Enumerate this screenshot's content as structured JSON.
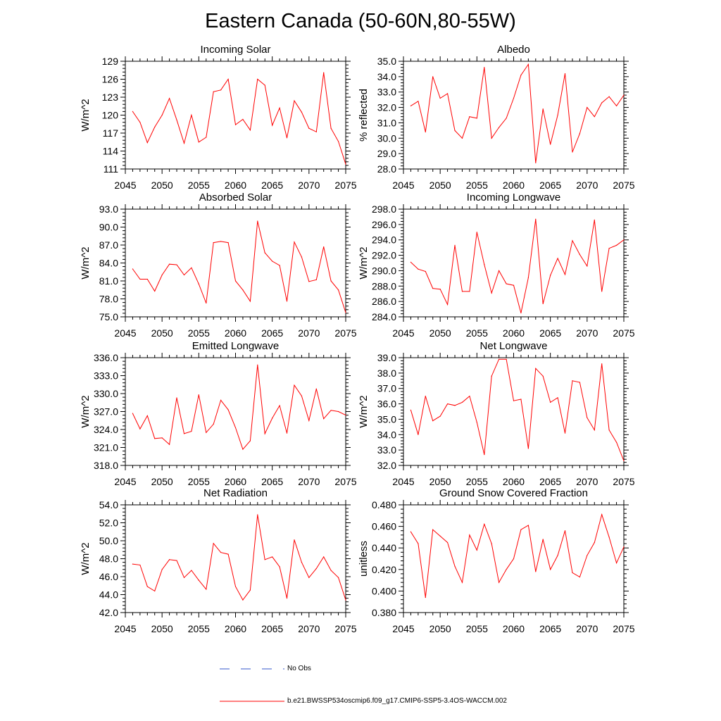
{
  "figure_title": "Eastern Canada (50-60N,80-55W)",
  "colors": {
    "model_line": "#ff0000",
    "obs_line": "#3355cc",
    "axis": "#000000"
  },
  "legend": {
    "obs_label": "No Obs",
    "model_label": "b.e21.BWSSP534oscmip6.f09_g17.CMIP6-SSP5-3.4OS-WACCM.002"
  },
  "chart_data": [
    {
      "type": "line",
      "title": "Incoming Solar",
      "ylabel": "W/m^2",
      "xlim": [
        2045,
        2075
      ],
      "ylim": [
        111,
        129
      ],
      "yticks": [
        111,
        114,
        117,
        120,
        123,
        126,
        129
      ],
      "ytick_labels": [
        "111",
        "114",
        "117",
        "120",
        "123",
        "126",
        "129"
      ],
      "xticks": [
        2045,
        2050,
        2055,
        2060,
        2065,
        2070,
        2075
      ],
      "xtick_labels": [
        "2045",
        "2050",
        "2055",
        "2060",
        "2065",
        "2070",
        "2075"
      ],
      "x": [
        2046,
        2047,
        2048,
        2049,
        2050,
        2051,
        2052,
        2053,
        2054,
        2055,
        2056,
        2057,
        2058,
        2059,
        2060,
        2061,
        2062,
        2063,
        2064,
        2065,
        2066,
        2067,
        2068,
        2069,
        2070,
        2071,
        2072,
        2073,
        2074,
        2075
      ],
      "values": [
        120.6,
        118.8,
        115.4,
        118.0,
        120.0,
        122.8,
        119.2,
        115.3,
        120.0,
        115.5,
        116.3,
        123.9,
        124.2,
        126.0,
        118.4,
        119.3,
        117.5,
        126.0,
        125.0,
        118.3,
        121.2,
        116.2,
        122.4,
        120.5,
        117.8,
        117.2,
        127.1,
        117.8,
        115.6,
        111.8
      ]
    },
    {
      "type": "line",
      "title": "Albedo",
      "ylabel": "% reflected",
      "xlim": [
        2045,
        2075
      ],
      "ylim": [
        28.0,
        35.0
      ],
      "yticks": [
        28,
        29,
        30,
        31,
        32,
        33,
        34,
        35
      ],
      "ytick_labels": [
        "28.0",
        "29.0",
        "30.0",
        "31.0",
        "32.0",
        "33.0",
        "34.0",
        "35.0"
      ],
      "xticks": [
        2045,
        2050,
        2055,
        2060,
        2065,
        2070,
        2075
      ],
      "xtick_labels": [
        "2045",
        "2050",
        "2055",
        "2060",
        "2065",
        "2070",
        "2075"
      ],
      "x": [
        2046,
        2047,
        2048,
        2049,
        2050,
        2051,
        2052,
        2053,
        2054,
        2055,
        2056,
        2057,
        2058,
        2059,
        2060,
        2061,
        2062,
        2063,
        2064,
        2065,
        2066,
        2067,
        2068,
        2069,
        2070,
        2071,
        2072,
        2073,
        2074,
        2075
      ],
      "values": [
        32.1,
        32.4,
        30.4,
        34.0,
        32.6,
        32.9,
        30.5,
        30.0,
        31.4,
        31.3,
        34.6,
        30.0,
        30.7,
        31.3,
        32.6,
        34.1,
        34.8,
        28.4,
        31.9,
        29.6,
        31.5,
        34.2,
        29.1,
        30.3,
        32.0,
        31.4,
        32.3,
        32.7,
        32.1,
        32.8
      ]
    },
    {
      "type": "line",
      "title": "Absorbed Solar",
      "ylabel": "W/m^2",
      "xlim": [
        2045,
        2075
      ],
      "ylim": [
        75.0,
        93.0
      ],
      "yticks": [
        75,
        78,
        81,
        84,
        87,
        90,
        93
      ],
      "ytick_labels": [
        "75.0",
        "78.0",
        "81.0",
        "84.0",
        "87.0",
        "90.0",
        "93.0"
      ],
      "xticks": [
        2045,
        2050,
        2055,
        2060,
        2065,
        2070,
        2075
      ],
      "xtick_labels": [
        "2045",
        "2050",
        "2055",
        "2060",
        "2065",
        "2070",
        "2075"
      ],
      "x": [
        2046,
        2047,
        2048,
        2049,
        2050,
        2051,
        2052,
        2053,
        2054,
        2055,
        2056,
        2057,
        2058,
        2059,
        2060,
        2061,
        2062,
        2063,
        2064,
        2065,
        2066,
        2067,
        2068,
        2069,
        2070,
        2071,
        2072,
        2073,
        2074,
        2075
      ],
      "values": [
        83.0,
        81.3,
        81.3,
        79.3,
        82.0,
        83.8,
        83.7,
        82.0,
        83.2,
        80.5,
        77.3,
        87.4,
        87.6,
        87.4,
        81.0,
        79.5,
        77.6,
        91.0,
        85.7,
        84.3,
        83.6,
        77.6,
        87.5,
        85.0,
        80.9,
        81.2,
        86.7,
        81.0,
        79.5,
        75.7
      ]
    },
    {
      "type": "line",
      "title": "Incoming Longwave",
      "ylabel": "W/m^2",
      "xlim": [
        2045,
        2075
      ],
      "ylim": [
        284.0,
        298.0
      ],
      "yticks": [
        284,
        286,
        288,
        290,
        292,
        294,
        296,
        298
      ],
      "ytick_labels": [
        "284.0",
        "286.0",
        "288.0",
        "290.0",
        "292.0",
        "294.0",
        "296.0",
        "298.0"
      ],
      "xticks": [
        2045,
        2050,
        2055,
        2060,
        2065,
        2070,
        2075
      ],
      "xtick_labels": [
        "2045",
        "2050",
        "2055",
        "2060",
        "2065",
        "2070",
        "2075"
      ],
      "x": [
        2046,
        2047,
        2048,
        2049,
        2050,
        2051,
        2052,
        2053,
        2054,
        2055,
        2056,
        2057,
        2058,
        2059,
        2060,
        2061,
        2062,
        2063,
        2064,
        2065,
        2066,
        2067,
        2068,
        2069,
        2070,
        2071,
        2072,
        2073,
        2074,
        2075
      ],
      "values": [
        291.1,
        290.2,
        289.9,
        287.7,
        287.6,
        285.6,
        293.3,
        287.3,
        287.3,
        295.0,
        290.8,
        287.1,
        290.0,
        288.3,
        288.1,
        284.5,
        289.1,
        296.7,
        285.7,
        289.4,
        291.6,
        289.5,
        293.9,
        292.1,
        290.6,
        296.6,
        287.3,
        292.9,
        293.3,
        294.0
      ]
    },
    {
      "type": "line",
      "title": "Emitted Longwave",
      "ylabel": "W/m^2",
      "xlim": [
        2045,
        2075
      ],
      "ylim": [
        318.0,
        336.0
      ],
      "yticks": [
        318,
        321,
        324,
        327,
        330,
        333,
        336
      ],
      "ytick_labels": [
        "318.0",
        "321.0",
        "324.0",
        "327.0",
        "330.0",
        "333.0",
        "336.0"
      ],
      "xticks": [
        2045,
        2050,
        2055,
        2060,
        2065,
        2070,
        2075
      ],
      "xtick_labels": [
        "2045",
        "2050",
        "2055",
        "2060",
        "2065",
        "2070",
        "2075"
      ],
      "x": [
        2046,
        2047,
        2048,
        2049,
        2050,
        2051,
        2052,
        2053,
        2054,
        2055,
        2056,
        2057,
        2058,
        2059,
        2060,
        2061,
        2062,
        2063,
        2064,
        2065,
        2066,
        2067,
        2068,
        2069,
        2070,
        2071,
        2072,
        2073,
        2074,
        2075
      ],
      "values": [
        326.7,
        324.1,
        326.3,
        322.5,
        322.6,
        321.5,
        329.3,
        323.3,
        323.7,
        329.8,
        323.5,
        324.9,
        328.9,
        327.3,
        324.3,
        320.7,
        322.1,
        334.8,
        323.3,
        325.9,
        328.0,
        323.4,
        331.4,
        329.6,
        325.5,
        330.8,
        325.8,
        327.2,
        327.0,
        326.4
      ]
    },
    {
      "type": "line",
      "title": "Net Longwave",
      "ylabel": "W/m^2",
      "xlim": [
        2045,
        2075
      ],
      "ylim": [
        32.0,
        39.0
      ],
      "yticks": [
        32,
        33,
        34,
        35,
        36,
        37,
        38,
        39
      ],
      "ytick_labels": [
        "32.0",
        "33.0",
        "34.0",
        "35.0",
        "36.0",
        "37.0",
        "38.0",
        "39.0"
      ],
      "xticks": [
        2045,
        2050,
        2055,
        2060,
        2065,
        2070,
        2075
      ],
      "xtick_labels": [
        "2045",
        "2050",
        "2055",
        "2060",
        "2065",
        "2070",
        "2075"
      ],
      "x": [
        2046,
        2047,
        2048,
        2049,
        2050,
        2051,
        2052,
        2053,
        2054,
        2055,
        2056,
        2057,
        2058,
        2059,
        2060,
        2061,
        2062,
        2063,
        2064,
        2065,
        2066,
        2067,
        2068,
        2069,
        2070,
        2071,
        2072,
        2073,
        2074,
        2075
      ],
      "values": [
        35.6,
        34.0,
        36.5,
        34.9,
        35.2,
        36.0,
        35.9,
        36.1,
        36.5,
        34.8,
        32.7,
        37.8,
        38.9,
        38.9,
        36.2,
        36.3,
        33.1,
        38.3,
        37.8,
        36.1,
        36.4,
        34.1,
        37.5,
        37.4,
        35.1,
        34.3,
        38.6,
        34.3,
        33.5,
        32.3
      ]
    },
    {
      "type": "line",
      "title": "Net Radiation",
      "ylabel": "W/m^2",
      "xlim": [
        2045,
        2075
      ],
      "ylim": [
        42.0,
        54.0
      ],
      "yticks": [
        42,
        44,
        46,
        48,
        50,
        52,
        54
      ],
      "ytick_labels": [
        "42.0",
        "44.0",
        "46.0",
        "48.0",
        "50.0",
        "52.0",
        "54.0"
      ],
      "xticks": [
        2045,
        2050,
        2055,
        2060,
        2065,
        2070,
        2075
      ],
      "xtick_labels": [
        "2045",
        "2050",
        "2055",
        "2060",
        "2065",
        "2070",
        "2075"
      ],
      "x": [
        2046,
        2047,
        2048,
        2049,
        2050,
        2051,
        2052,
        2053,
        2054,
        2055,
        2056,
        2057,
        2058,
        2059,
        2060,
        2061,
        2062,
        2063,
        2064,
        2065,
        2066,
        2067,
        2068,
        2069,
        2070,
        2071,
        2072,
        2073,
        2074,
        2075
      ],
      "values": [
        47.4,
        47.3,
        44.9,
        44.4,
        46.8,
        47.9,
        47.8,
        45.9,
        46.7,
        45.6,
        44.6,
        49.7,
        48.7,
        48.5,
        44.9,
        43.4,
        44.5,
        52.9,
        47.9,
        48.2,
        47.1,
        43.6,
        50.1,
        47.6,
        45.9,
        46.9,
        48.2,
        46.7,
        45.9,
        43.4
      ]
    },
    {
      "type": "line",
      "title": "Ground Snow Covered Fraction",
      "ylabel": "unitless",
      "xlim": [
        2045,
        2075
      ],
      "ylim": [
        0.38,
        0.48
      ],
      "yticks": [
        0.38,
        0.4,
        0.42,
        0.44,
        0.46,
        0.48
      ],
      "ytick_labels": [
        "0.380",
        "0.400",
        "0.420",
        "0.440",
        "0.460",
        "0.480"
      ],
      "xticks": [
        2045,
        2050,
        2055,
        2060,
        2065,
        2070,
        2075
      ],
      "xtick_labels": [
        "2045",
        "2050",
        "2055",
        "2060",
        "2065",
        "2070",
        "2075"
      ],
      "x": [
        2046,
        2047,
        2048,
        2049,
        2050,
        2051,
        2052,
        2053,
        2054,
        2055,
        2056,
        2057,
        2058,
        2059,
        2060,
        2061,
        2062,
        2063,
        2064,
        2065,
        2066,
        2067,
        2068,
        2069,
        2070,
        2071,
        2072,
        2073,
        2074,
        2075
      ],
      "values": [
        0.455,
        0.444,
        0.394,
        0.457,
        0.451,
        0.445,
        0.423,
        0.408,
        0.452,
        0.438,
        0.462,
        0.444,
        0.408,
        0.42,
        0.43,
        0.457,
        0.461,
        0.418,
        0.448,
        0.42,
        0.433,
        0.456,
        0.417,
        0.413,
        0.433,
        0.445,
        0.471,
        0.45,
        0.426,
        0.441
      ]
    }
  ]
}
